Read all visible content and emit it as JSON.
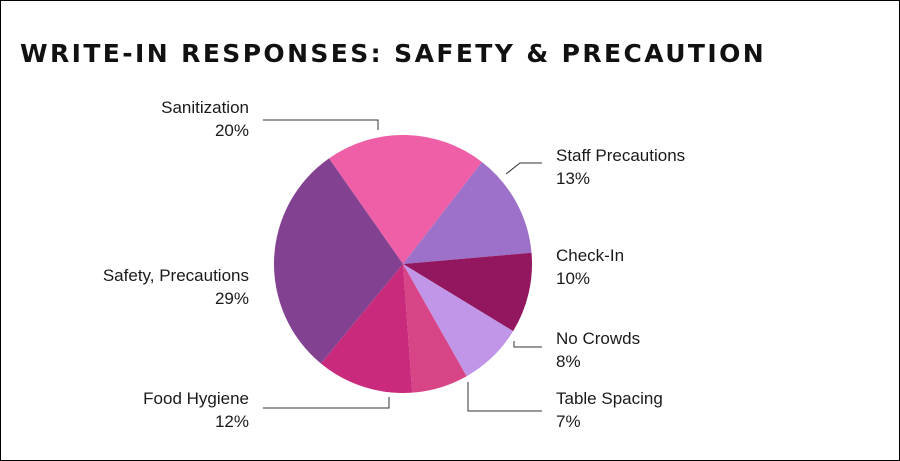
{
  "chart_data": {
    "type": "pie",
    "title": "WRITE-IN RESPONSES: SAFETY & PRECAUTION",
    "slices": [
      {
        "label": "Sanitization",
        "value": 20,
        "display": "20%",
        "color": "#ee5fa7"
      },
      {
        "label": "Staff Precautions",
        "value": 13,
        "display": "13%",
        "color": "#9d70c9"
      },
      {
        "label": "Check-In",
        "value": 10,
        "display": "10%",
        "color": "#93175e"
      },
      {
        "label": "No Crowds",
        "value": 8,
        "display": "8%",
        "color": "#c196e8"
      },
      {
        "label": "Table Spacing",
        "value": 7,
        "display": "7%",
        "color": "#d84586"
      },
      {
        "label": "Food Hygiene",
        "value": 12,
        "display": "12%",
        "color": "#c92a7c"
      },
      {
        "label": "Safety, Precautions",
        "value": 29,
        "display": "29%",
        "color": "#824291"
      }
    ],
    "legend": "none",
    "grid": false
  }
}
